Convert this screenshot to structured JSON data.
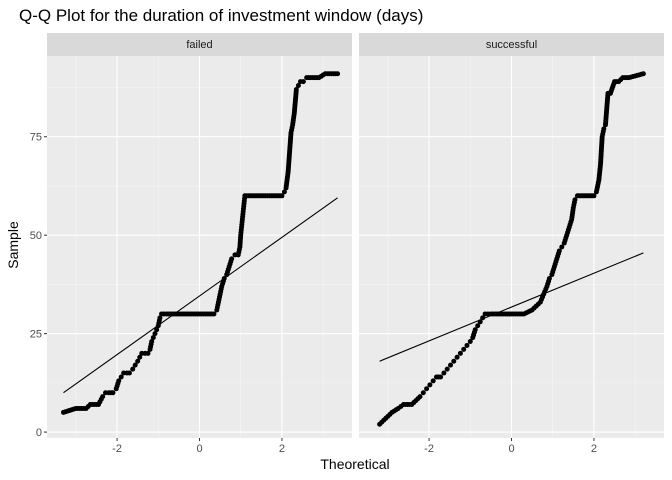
{
  "chart_data": {
    "type": "scatter",
    "title": "Q-Q Plot for the duration of investment window (days)",
    "xlabel": "Theoretical",
    "ylabel": "Sample",
    "xlim": [
      -3.7,
      3.7
    ],
    "ylim": [
      -1.5,
      95.5
    ],
    "x_ticks": [
      -2,
      0,
      2
    ],
    "y_ticks": [
      0,
      25,
      50,
      75
    ],
    "grid": true,
    "facets": [
      {
        "label": "failed",
        "qq_line": {
          "x": [
            -3.3,
            3.35
          ],
          "y": [
            10,
            59.5
          ]
        },
        "points": [
          [
            -3.3,
            5
          ],
          [
            -3.0,
            6
          ],
          [
            -2.85,
            6
          ],
          [
            -2.75,
            6
          ],
          [
            -2.65,
            7
          ],
          [
            -2.55,
            7
          ],
          [
            -2.45,
            7
          ],
          [
            -2.35,
            9
          ],
          [
            -2.28,
            10
          ],
          [
            -2.2,
            10
          ],
          [
            -2.1,
            10
          ],
          [
            -2.02,
            11
          ],
          [
            -1.96,
            13
          ],
          [
            -1.9,
            14
          ],
          [
            -1.84,
            15
          ],
          [
            -1.76,
            15
          ],
          [
            -1.7,
            15
          ],
          [
            -1.62,
            16
          ],
          [
            -1.56,
            17
          ],
          [
            -1.5,
            18
          ],
          [
            -1.45,
            19
          ],
          [
            -1.4,
            20
          ],
          [
            -1.32,
            20
          ],
          [
            -1.25,
            20
          ],
          [
            -1.2,
            21
          ],
          [
            -1.16,
            23
          ],
          [
            -1.12,
            24
          ],
          [
            -1.08,
            25
          ],
          [
            -1.04,
            26
          ],
          [
            -1.0,
            27
          ],
          [
            -0.96,
            29
          ],
          [
            -0.92,
            30
          ],
          [
            -0.8,
            30
          ],
          [
            -0.6,
            30
          ],
          [
            -0.4,
            30
          ],
          [
            -0.2,
            30
          ],
          [
            0.0,
            30
          ],
          [
            0.2,
            30
          ],
          [
            0.35,
            30
          ],
          [
            0.42,
            31
          ],
          [
            0.46,
            33
          ],
          [
            0.5,
            35
          ],
          [
            0.54,
            37
          ],
          [
            0.6,
            39
          ],
          [
            0.66,
            40
          ],
          [
            0.72,
            42
          ],
          [
            0.78,
            44
          ],
          [
            0.86,
            45
          ],
          [
            0.94,
            45
          ],
          [
            0.98,
            47
          ],
          [
            1.0,
            50
          ],
          [
            1.02,
            52
          ],
          [
            1.04,
            54
          ],
          [
            1.06,
            56
          ],
          [
            1.08,
            58
          ],
          [
            1.1,
            60
          ],
          [
            1.3,
            60
          ],
          [
            1.5,
            60
          ],
          [
            1.7,
            60
          ],
          [
            1.9,
            60
          ],
          [
            2.0,
            60
          ],
          [
            2.06,
            61
          ],
          [
            2.1,
            62
          ],
          [
            2.15,
            66
          ],
          [
            2.22,
            76
          ],
          [
            2.26,
            78
          ],
          [
            2.3,
            81
          ],
          [
            2.35,
            87
          ],
          [
            2.4,
            88
          ],
          [
            2.45,
            89
          ],
          [
            2.52,
            89
          ],
          [
            2.6,
            90
          ],
          [
            2.7,
            90
          ],
          [
            2.8,
            90
          ],
          [
            2.9,
            90
          ],
          [
            3.05,
            91
          ],
          [
            3.35,
            91
          ]
        ]
      },
      {
        "label": "successful",
        "qq_line": {
          "x": [
            -3.2,
            3.2
          ],
          "y": [
            18,
            45.5
          ]
        },
        "points": [
          [
            -3.2,
            2
          ],
          [
            -2.9,
            5
          ],
          [
            -2.75,
            6
          ],
          [
            -2.62,
            7
          ],
          [
            -2.52,
            7
          ],
          [
            -2.42,
            7
          ],
          [
            -2.32,
            8
          ],
          [
            -2.22,
            9
          ],
          [
            -2.14,
            10
          ],
          [
            -2.06,
            11
          ],
          [
            -1.98,
            12
          ],
          [
            -1.9,
            13
          ],
          [
            -1.82,
            14
          ],
          [
            -1.72,
            14
          ],
          [
            -1.64,
            15
          ],
          [
            -1.56,
            16
          ],
          [
            -1.48,
            17
          ],
          [
            -1.4,
            18
          ],
          [
            -1.32,
            19
          ],
          [
            -1.24,
            20
          ],
          [
            -1.16,
            21
          ],
          [
            -1.08,
            22
          ],
          [
            -1.0,
            23
          ],
          [
            -0.94,
            24
          ],
          [
            -0.88,
            26
          ],
          [
            -0.82,
            27
          ],
          [
            -0.76,
            28
          ],
          [
            -0.7,
            29
          ],
          [
            -0.64,
            30
          ],
          [
            -0.5,
            30
          ],
          [
            -0.3,
            30
          ],
          [
            -0.1,
            30
          ],
          [
            0.1,
            30
          ],
          [
            0.3,
            30
          ],
          [
            0.5,
            31
          ],
          [
            0.6,
            32
          ],
          [
            0.7,
            33
          ],
          [
            0.78,
            35
          ],
          [
            0.86,
            37
          ],
          [
            0.92,
            39
          ],
          [
            0.98,
            40
          ],
          [
            1.04,
            42
          ],
          [
            1.1,
            44
          ],
          [
            1.16,
            46
          ],
          [
            1.22,
            47
          ],
          [
            1.28,
            48
          ],
          [
            1.34,
            50
          ],
          [
            1.4,
            52
          ],
          [
            1.46,
            54
          ],
          [
            1.5,
            57
          ],
          [
            1.54,
            59
          ],
          [
            1.6,
            60
          ],
          [
            1.7,
            60
          ],
          [
            1.8,
            60
          ],
          [
            1.9,
            60
          ],
          [
            2.0,
            60
          ],
          [
            2.06,
            61
          ],
          [
            2.12,
            64
          ],
          [
            2.16,
            68
          ],
          [
            2.2,
            75
          ],
          [
            2.24,
            77
          ],
          [
            2.28,
            78
          ],
          [
            2.34,
            86
          ],
          [
            2.4,
            86
          ],
          [
            2.5,
            89
          ],
          [
            2.6,
            89
          ],
          [
            2.7,
            90
          ],
          [
            2.85,
            90
          ],
          [
            3.2,
            91
          ]
        ]
      }
    ]
  }
}
